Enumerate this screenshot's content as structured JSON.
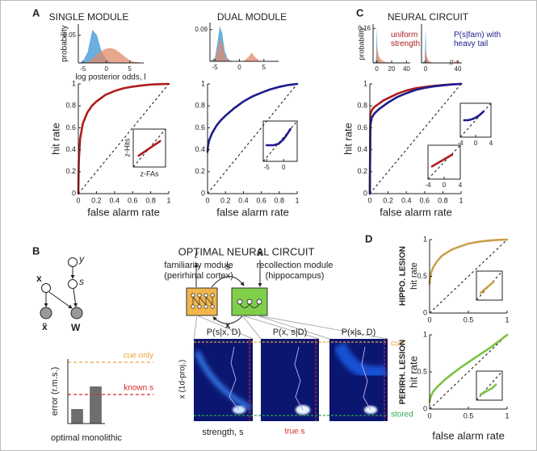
{
  "figure": {
    "panel_labels": [
      "A",
      "B",
      "C",
      "D"
    ]
  },
  "diagram": {
    "title": "OPTIMAL NEURAL CIRCUIT",
    "graphical_model": {
      "nodes": [
        "y",
        "s",
        "x",
        "x̃",
        "W"
      ]
    },
    "modules": [
      {
        "name": "familiarity module",
        "area": "(perirhinal cortex)"
      },
      {
        "name": "recollection module",
        "area": "(hippocampus)"
      }
    ],
    "arrows": [
      "ℓ",
      "s",
      "x",
      "x̃"
    ],
    "posteriors": {
      "titles": [
        "P(s|x, D)",
        "P(x, s|D)",
        "P(x|s, D)"
      ],
      "ylabel": "x (1d-proj.)",
      "xlabel": "strength, s",
      "annotations": [
        "true s",
        "cue",
        "stored"
      ]
    }
  },
  "chart_data": [
    {
      "type": "area",
      "ylabel": "probability",
      "xlabel": "log posterior odds, l",
      "xlim": [
        -6,
        8
      ],
      "ylim": [
        0,
        0.07
      ],
      "xticks": [
        -5,
        0,
        5
      ],
      "yticks": [
        0.05
      ],
      "x": [
        -6,
        -5,
        -4,
        -3,
        -2,
        -1,
        0,
        1,
        2,
        3,
        4,
        5,
        6,
        8
      ],
      "series": [
        {
          "color": "#5aa6dd",
          "values": [
            0,
            0.003,
            0.02,
            0.06,
            0.05,
            0.02,
            0.006,
            0.001,
            0,
            0,
            0,
            0,
            0,
            0
          ]
        },
        {
          "color": "#e0896a",
          "values": [
            0,
            0,
            0.002,
            0.008,
            0.016,
            0.022,
            0.026,
            0.027,
            0.024,
            0.018,
            0.011,
            0.005,
            0.002,
            0
          ]
        }
      ]
    },
    {
      "type": "line",
      "title": "SINGLE MODULE",
      "xlabel": "false alarm rate",
      "ylabel": "hit rate",
      "xlim": [
        0,
        1
      ],
      "ylim": [
        0,
        1
      ],
      "xticks": [
        0,
        0.2,
        0.4,
        0.6,
        0.8,
        1
      ],
      "yticks": [
        0,
        0.2,
        0.4,
        0.6,
        0.8,
        1
      ],
      "x": [
        0,
        0.005,
        0.02,
        0.05,
        0.1,
        0.15,
        0.2,
        0.3,
        0.4,
        0.5,
        0.6,
        0.7,
        0.8,
        0.9,
        1
      ],
      "series": [
        {
          "color": "#b01c1c",
          "values": [
            0,
            0.3,
            0.5,
            0.64,
            0.74,
            0.8,
            0.84,
            0.9,
            0.935,
            0.96,
            0.975,
            0.986,
            0.994,
            0.998,
            1
          ]
        }
      ]
    },
    {
      "type": "line",
      "xlabel": "z-FAs",
      "ylabel": "z-Hits",
      "xlim": [
        -3,
        3
      ],
      "ylim": [
        -3,
        3
      ],
      "x": [
        -2,
        2
      ],
      "series": [
        {
          "color": "#b01c1c",
          "values": [
            -1.2,
            1.1
          ]
        }
      ]
    },
    {
      "type": "area",
      "xlim": [
        -6,
        8
      ],
      "ylim": [
        0,
        0.11
      ],
      "xticks": [
        -5,
        0,
        5
      ],
      "yticks": [
        0.09
      ],
      "x": [
        -6,
        -5,
        -4.5,
        -4,
        -3.5,
        -3,
        -2.5,
        -2,
        -1,
        0,
        1,
        2,
        2.5,
        3,
        4,
        5,
        8
      ],
      "series": [
        {
          "color": "#5aa6dd",
          "values": [
            0,
            0.01,
            0.05,
            0.1,
            0.08,
            0.03,
            0.01,
            0.003,
            0,
            0,
            0,
            0,
            0,
            0,
            0,
            0,
            0
          ]
        },
        {
          "color": "#e0896a",
          "values": [
            0,
            0.005,
            0.03,
            0.065,
            0.05,
            0.02,
            0.006,
            0.002,
            0,
            0,
            0.002,
            0.015,
            0.025,
            0.015,
            0.002,
            0,
            0
          ]
        }
      ]
    },
    {
      "type": "line",
      "title": "DUAL MODULE",
      "xlabel": "false alarm rate",
      "xlim": [
        0,
        1
      ],
      "ylim": [
        0,
        1
      ],
      "xticks": [
        0,
        0.2,
        0.4,
        0.6,
        0.8,
        1
      ],
      "yticks": [
        0,
        0.2,
        0.4,
        0.6,
        0.8,
        1
      ],
      "x": [
        0,
        0.005,
        0.02,
        0.05,
        0.1,
        0.15,
        0.2,
        0.3,
        0.4,
        0.5,
        0.6,
        0.7,
        0.8,
        0.9,
        1
      ],
      "series": [
        {
          "color": "#1c1c8c",
          "values": [
            0.38,
            0.44,
            0.49,
            0.55,
            0.62,
            0.67,
            0.71,
            0.78,
            0.84,
            0.885,
            0.92,
            0.95,
            0.973,
            0.99,
            1
          ]
        }
      ]
    },
    {
      "type": "line",
      "xlim": [
        -6,
        4
      ],
      "ylim": [
        -3,
        3
      ],
      "xticks": [
        -5,
        0
      ],
      "x": [
        -5,
        -3,
        -1.5,
        0,
        1,
        2
      ],
      "series": [
        {
          "color": "#1c1c8c",
          "values": [
            -0.6,
            -0.6,
            -0.4,
            0.3,
            1,
            1.8
          ]
        }
      ]
    },
    {
      "type": "area",
      "ylabel": "probability",
      "xlim": [
        -5,
        45
      ],
      "ylim": [
        0,
        0.18
      ],
      "xticks": [
        0,
        20,
        40
      ],
      "yticks": [
        0.16
      ],
      "x": [
        -5,
        -1,
        0,
        1,
        3,
        6,
        10,
        20,
        30,
        45
      ],
      "series": [
        {
          "color": "#5aa6dd",
          "values": [
            0,
            0.01,
            0.17,
            0.03,
            0.005,
            0,
            0,
            0,
            0,
            0
          ]
        },
        {
          "color": "#e0896a",
          "values": [
            0,
            0.005,
            0.08,
            0.06,
            0.03,
            0.015,
            0.006,
            0.002,
            0.001,
            0
          ]
        }
      ]
    },
    {
      "type": "area",
      "xlim": [
        -5,
        45
      ],
      "ylim": [
        0,
        0.18
      ],
      "xticks": [
        0,
        40
      ],
      "x": [
        -5,
        -1,
        0,
        1,
        3,
        6,
        10,
        20,
        30,
        35,
        38,
        40,
        42,
        45
      ],
      "series": [
        {
          "color": "#5aa6dd",
          "values": [
            0,
            0.01,
            0.16,
            0.03,
            0.005,
            0,
            0,
            0,
            0,
            0,
            0,
            0,
            0,
            0
          ]
        },
        {
          "color": "#e0896a",
          "values": [
            0,
            0.003,
            0.06,
            0.04,
            0.015,
            0.005,
            0.002,
            0,
            0,
            0.002,
            0.01,
            0.015,
            0.005,
            0
          ]
        }
      ]
    },
    {
      "type": "line",
      "title": "NEURAL CIRCUIT",
      "xlabel": "false alarm rate",
      "ylabel": "hit rate",
      "xlim": [
        0,
        1
      ],
      "ylim": [
        0,
        1
      ],
      "xticks": [
        0,
        0.2,
        0.4,
        0.6,
        0.8,
        1
      ],
      "yticks": [
        0,
        0.2,
        0.4,
        0.6,
        0.8,
        1
      ],
      "x": [
        0,
        0.005,
        0.02,
        0.05,
        0.1,
        0.15,
        0.2,
        0.3,
        0.4,
        0.5,
        0.6,
        0.7,
        0.8,
        0.9,
        1
      ],
      "series": [
        {
          "name": "uniform strength",
          "color": "#b01c1c",
          "values": [
            0,
            0.72,
            0.76,
            0.79,
            0.82,
            0.85,
            0.87,
            0.91,
            0.94,
            0.96,
            0.972,
            0.982,
            0.99,
            0.996,
            1
          ]
        },
        {
          "name": "P(s|fam) with heavy tail",
          "color": "#1c1c8c",
          "values": [
            0,
            0.62,
            0.69,
            0.73,
            0.77,
            0.8,
            0.83,
            0.88,
            0.915,
            0.945,
            0.963,
            0.977,
            0.987,
            0.995,
            1
          ]
        }
      ]
    },
    {
      "type": "line",
      "xlim": [
        -4,
        4
      ],
      "ylim": [
        -4,
        4
      ],
      "xticks": [
        -4,
        0,
        4
      ],
      "x": [
        -3,
        -2,
        -1,
        0,
        1,
        2
      ],
      "series": [
        {
          "color": "#1c1c8c",
          "values": [
            0,
            0,
            0.2,
            0.6,
            1.2,
            2
          ]
        }
      ]
    },
    {
      "type": "line",
      "xlim": [
        -4,
        4
      ],
      "ylim": [
        -4,
        4
      ],
      "xticks": [
        -4,
        0,
        4
      ],
      "x": [
        -3,
        2
      ],
      "series": [
        {
          "color": "#b01c1c",
          "values": [
            -1,
            1.8
          ]
        }
      ]
    },
    {
      "type": "bar",
      "ylabel": "error (r.m.s.)",
      "xlabel": "optimal monolithic",
      "categories": [
        null,
        null
      ],
      "values": [
        0.045,
        0.115
      ],
      "color": "#6e6e6e",
      "ylim": [
        0,
        0.2
      ],
      "reference_lines": [
        {
          "label": "cue only",
          "value": 0.19,
          "color": "#e8a33a"
        },
        {
          "label": "known s",
          "value": 0.09,
          "color": "#d62828"
        }
      ]
    },
    {
      "type": "line",
      "title": "HIPPO. LESION",
      "ylabel": "hit rate",
      "xlim": [
        0,
        1
      ],
      "ylim": [
        0,
        1
      ],
      "xticks": [
        0,
        0.5,
        1
      ],
      "yticks": [
        0,
        0.5,
        1
      ],
      "x": [
        0,
        0.005,
        0.02,
        0.05,
        0.1,
        0.15,
        0.2,
        0.3,
        0.4,
        0.5,
        0.6,
        0.7,
        0.8,
        0.9,
        1
      ],
      "series": [
        {
          "color": "#c9a04a",
          "values": [
            0.4,
            0.47,
            0.55,
            0.63,
            0.71,
            0.77,
            0.81,
            0.87,
            0.91,
            0.945,
            0.965,
            0.98,
            0.99,
            0.997,
            1
          ]
        }
      ]
    },
    {
      "type": "line",
      "title": "PERIRH. LESION",
      "ylabel": "hit rate",
      "xlabel": "false alarm rate",
      "xlim": [
        0,
        1
      ],
      "ylim": [
        0,
        1
      ],
      "xticks": [
        0,
        0.5,
        1
      ],
      "yticks": [
        0,
        0.5,
        1
      ],
      "x": [
        0,
        0.005,
        0.02,
        0.05,
        0.1,
        0.15,
        0.2,
        0.3,
        0.4,
        0.5,
        0.6,
        0.7,
        0.8,
        0.9,
        1
      ],
      "series": [
        {
          "color": "#7cc242",
          "values": [
            0.1,
            0.13,
            0.18,
            0.24,
            0.3,
            0.35,
            0.4,
            0.48,
            0.56,
            0.63,
            0.7,
            0.77,
            0.84,
            0.92,
            1
          ]
        }
      ]
    },
    {
      "type": "line",
      "xlim": [
        -3,
        3
      ],
      "ylim": [
        -3,
        3
      ],
      "x": [
        -2,
        1
      ],
      "series": [
        {
          "color": "#c9a04a",
          "values": [
            -1.5,
            0.8
          ]
        }
      ]
    },
    {
      "type": "line",
      "xlim": [
        -3,
        3
      ],
      "ylim": [
        -3,
        3
      ],
      "x": [
        -2,
        0.5,
        1.5
      ],
      "series": [
        {
          "color": "#7cc242",
          "values": [
            -1.8,
            -0.6,
            0.2
          ]
        }
      ]
    }
  ]
}
